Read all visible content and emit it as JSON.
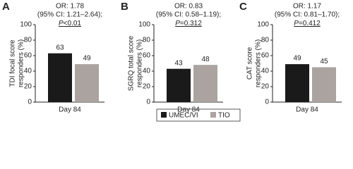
{
  "chart_data": [
    {
      "type": "bar",
      "panel": "A",
      "annotations": [
        "OR: 1.78",
        "(95% CI: 1.21–2.64);",
        "P<0.01"
      ],
      "ylabel": [
        "TDI focal score",
        "responders (%)"
      ],
      "categories": [
        "Day 84"
      ],
      "series": [
        {
          "values": [
            63
          ]
        },
        {
          "values": [
            49
          ]
        }
      ],
      "ylim": [
        0,
        100
      ],
      "yticks": [
        0,
        20,
        40,
        60,
        80,
        100
      ]
    },
    {
      "type": "bar",
      "panel": "B",
      "annotations": [
        "OR: 0.83",
        "(95% CI: 0.58–1.19);",
        "P=0.312"
      ],
      "ylabel": [
        "SGRQ total score",
        "responders (%)"
      ],
      "categories": [
        "Day 84"
      ],
      "series": [
        {
          "values": [
            43
          ]
        },
        {
          "values": [
            48
          ]
        }
      ],
      "ylim": [
        0,
        100
      ],
      "yticks": [
        0,
        20,
        40,
        60,
        80,
        100
      ]
    },
    {
      "type": "bar",
      "panel": "C",
      "annotations": [
        "OR: 1.17",
        "(95% CI: 0.81–1.70);",
        "P=0.412"
      ],
      "ylabel": [
        "CAT score",
        "responders (%)"
      ],
      "categories": [
        "Day 84"
      ],
      "series": [
        {
          "values": [
            49
          ]
        },
        {
          "values": [
            45
          ]
        }
      ],
      "ylim": [
        0,
        100
      ],
      "yticks": [
        0,
        20,
        40,
        60,
        80,
        100
      ]
    }
  ],
  "legend": {
    "position": "bottom",
    "items": [
      {
        "name": "UMEC/VI",
        "color": "#1a1a1a"
      },
      {
        "name": "TIO",
        "color": "#aaa39f"
      }
    ]
  }
}
